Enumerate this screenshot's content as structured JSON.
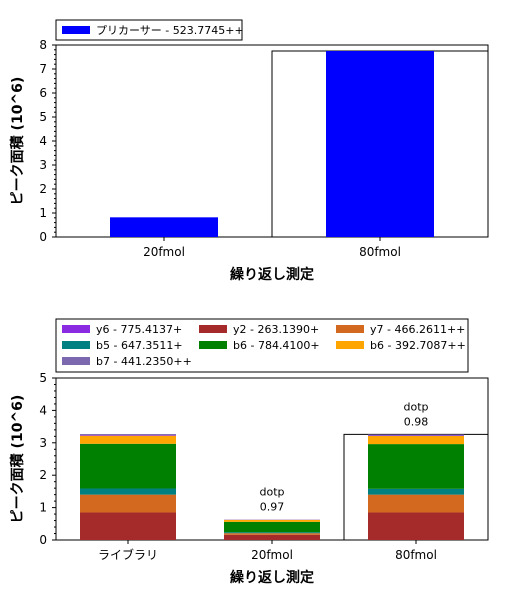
{
  "chart_data": [
    {
      "type": "bar",
      "categories": [
        "20fmol",
        "80fmol"
      ],
      "series": [
        {
          "name": "プリカーサー - 523.7745++",
          "color": "#0000ff",
          "values": [
            0.82,
            7.75
          ]
        }
      ],
      "xlabel": "繰り返し測定",
      "ylabel": "ピーク面積 (10^6)",
      "ylim": [
        0,
        8
      ],
      "yticks": [
        0,
        1,
        2,
        3,
        4,
        5,
        6,
        7,
        8
      ],
      "grid": false,
      "legend_position": "top-left",
      "selected_category": "80fmol"
    },
    {
      "type": "bar",
      "stacked": true,
      "categories": [
        "ライブラリ",
        "20fmol",
        "80fmol"
      ],
      "series": [
        {
          "name": "y2 - 263.1390+",
          "color": "#a52a2a",
          "values": [
            0.85,
            0.16,
            0.85
          ]
        },
        {
          "name": "y7 - 466.2611++",
          "color": "#d2691e",
          "values": [
            0.55,
            0.05,
            0.55
          ]
        },
        {
          "name": "b5 - 647.3511+",
          "color": "#008080",
          "values": [
            0.19,
            0.03,
            0.18
          ]
        },
        {
          "name": "b6 - 784.4100+",
          "color": "#008000",
          "values": [
            1.38,
            0.32,
            1.38
          ]
        },
        {
          "name": "b6 - 392.7087++",
          "color": "#ffa500",
          "values": [
            0.25,
            0.06,
            0.25
          ]
        },
        {
          "name": "y6 - 775.4137+",
          "color": "#8a2be2",
          "values": [
            0.02,
            0.005,
            0.02
          ]
        },
        {
          "name": "b7 - 441.2350++",
          "color": "#7b68ae",
          "values": [
            0.03,
            0.005,
            0.03
          ]
        }
      ],
      "annotations": [
        {
          "category": "20fmol",
          "label": "dotp",
          "value": "0.97"
        },
        {
          "category": "80fmol",
          "label": "dotp",
          "value": "0.98"
        }
      ],
      "legend_order": [
        "y6 - 775.4137+",
        "y2 - 263.1390+",
        "y7 - 466.2611++",
        "b5 - 647.3511+",
        "b6 - 784.4100+",
        "b6 - 392.7087++",
        "b7 - 441.2350++"
      ],
      "xlabel": "繰り返し測定",
      "ylabel": "ピーク面積 (10^6)",
      "ylim": [
        0,
        5
      ],
      "yticks": [
        0,
        1,
        2,
        3,
        4,
        5
      ],
      "grid": false,
      "legend_position": "top",
      "selected_category": "80fmol"
    }
  ]
}
